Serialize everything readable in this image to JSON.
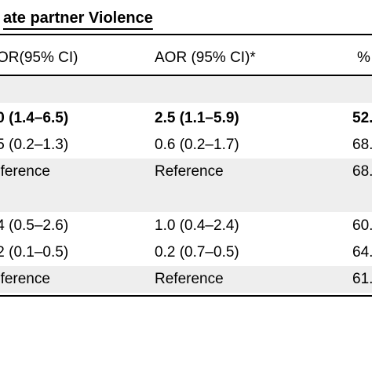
{
  "table": {
    "title": "ate partner Violence",
    "columns": [
      {
        "label": "OR(95% CI)"
      },
      {
        "label": "AOR (95% CI)*"
      },
      {
        "label": "%"
      }
    ],
    "rows": [
      {
        "cells": [
          "",
          "",
          ""
        ],
        "shade": true,
        "bold": false
      },
      {
        "cells": [
          ".0 (1.4–6.5)",
          "2.5 (1.1–5.9)",
          "52."
        ],
        "shade": false,
        "bold": true
      },
      {
        "cells": [
          ".5 (0.2–1.3)",
          "0.6 (0.2–1.7)",
          "68."
        ],
        "shade": false,
        "bold": false
      },
      {
        "cells": [
          "eference",
          "Reference",
          "68."
        ],
        "shade": true,
        "bold": false
      },
      {
        "cells": [
          "",
          "",
          ""
        ],
        "shade": true,
        "bold": false
      },
      {
        "cells": [
          ".4 (0.5–2.6)",
          "1.0 (0.4–2.4)",
          "60."
        ],
        "shade": false,
        "bold": false
      },
      {
        "cells": [
          ".2 (0.1–0.5)",
          "0.2 (0.7–0.5)",
          "64."
        ],
        "shade": false,
        "bold": false
      },
      {
        "cells": [
          "eference",
          "Reference",
          "61."
        ],
        "shade": true,
        "bold": false
      }
    ]
  }
}
